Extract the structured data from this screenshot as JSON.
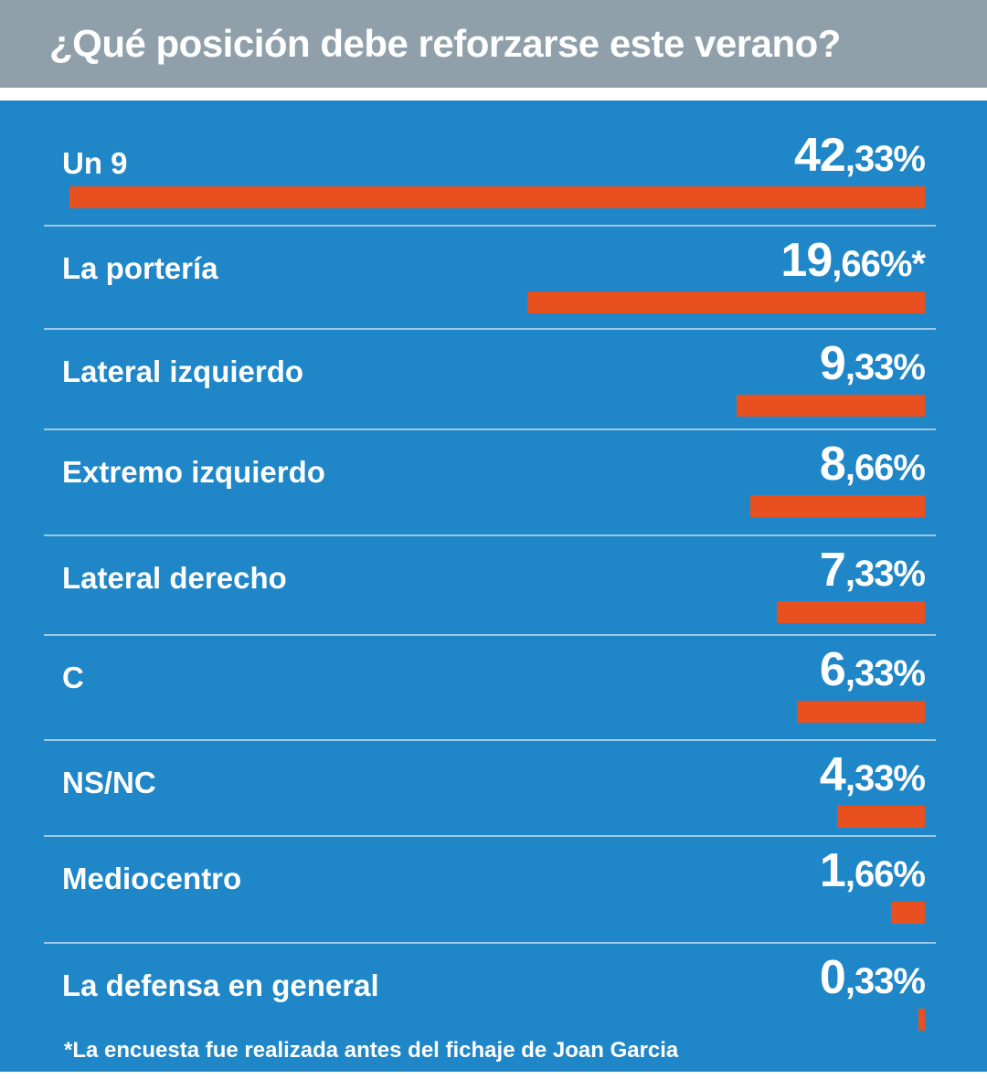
{
  "title": "¿Qué posición debe reforzarse este verano?",
  "footnote": "*La encuesta fue realizada antes del fichaje de Joan Garcia",
  "colors": {
    "header": "#8fa0ab",
    "panel": "#1f86c8",
    "bar": "#e8511f",
    "text": "#ffffff"
  },
  "chart_data": {
    "type": "bar",
    "orientation": "horizontal",
    "title": "¿Qué posición debe reforzarse este verano?",
    "unit": "%",
    "categories": [
      "Un 9",
      "La portería",
      "Lateral izquierdo",
      "Extremo izquierdo",
      "Lateral derecho",
      "C",
      "NS/NC",
      "Mediocentro",
      "La defensa en general"
    ],
    "values": [
      42.33,
      19.66,
      9.33,
      8.66,
      7.33,
      6.33,
      4.33,
      1.66,
      0.33
    ],
    "value_labels": [
      {
        "int": "42",
        "dec": ",33%"
      },
      {
        "int": "19",
        "dec": ",66%*"
      },
      {
        "int": "9",
        "dec": ",33%"
      },
      {
        "int": "8",
        "dec": ",66%"
      },
      {
        "int": "7",
        "dec": ",33%"
      },
      {
        "int": "6",
        "dec": ",33%"
      },
      {
        "int": "4",
        "dec": ",33%"
      },
      {
        "int": "1",
        "dec": ",66%"
      },
      {
        "int": "0",
        "dec": ",33%"
      }
    ],
    "xlim": [
      0,
      42.33
    ]
  }
}
